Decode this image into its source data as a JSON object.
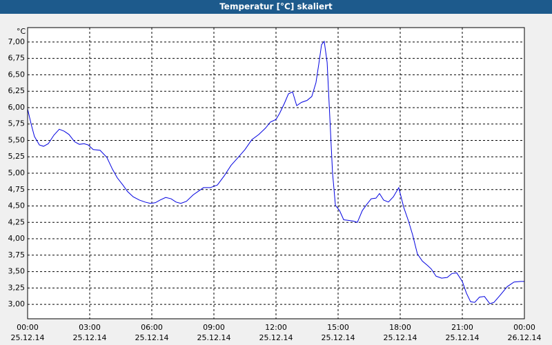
{
  "chart_data": {
    "type": "line",
    "title": "Temperatur [°C] skaliert",
    "ylabel": "°C",
    "color": "#0000e0",
    "grid": true,
    "xlim": [
      0,
      24
    ],
    "ylim": [
      2.78,
      7.22
    ],
    "xticks": [
      {
        "value": 0,
        "label": "00:00"
      },
      {
        "value": 3,
        "label": "03:00"
      },
      {
        "value": 6,
        "label": "06:00"
      },
      {
        "value": 9,
        "label": "09:00"
      },
      {
        "value": 12,
        "label": "12:00"
      },
      {
        "value": 15,
        "label": "15:00"
      },
      {
        "value": 18,
        "label": "18:00"
      },
      {
        "value": 21,
        "label": "21:00"
      },
      {
        "value": 24,
        "label": "00:00"
      }
    ],
    "xtick_dates": [
      "25.12.14",
      "25.12.14",
      "25.12.14",
      "25.12.14",
      "25.12.14",
      "25.12.14",
      "25.12.14",
      "25.12.14",
      "26.12.14"
    ],
    "yticks": [
      {
        "value": 3,
        "label": "3,00"
      },
      {
        "value": 3.25,
        "label": "3,25"
      },
      {
        "value": 3.5,
        "label": "3,50"
      },
      {
        "value": 3.75,
        "label": "3,75"
      },
      {
        "value": 4,
        "label": "4,00"
      },
      {
        "value": 4.25,
        "label": "4,25"
      },
      {
        "value": 4.5,
        "label": "4,50"
      },
      {
        "value": 4.75,
        "label": "4,75"
      },
      {
        "value": 5,
        "label": "5,00"
      },
      {
        "value": 5.25,
        "label": "5,25"
      },
      {
        "value": 5.5,
        "label": "5,50"
      },
      {
        "value": 5.75,
        "label": "5,75"
      },
      {
        "value": 6,
        "label": "6,00"
      },
      {
        "value": 6.25,
        "label": "6,25"
      },
      {
        "value": 6.5,
        "label": "6,50"
      },
      {
        "value": 6.75,
        "label": "6,75"
      },
      {
        "value": 7,
        "label": "7,00"
      }
    ],
    "x": [
      0,
      0.17,
      0.33,
      0.57,
      0.77,
      1.0,
      1.27,
      1.53,
      1.77,
      2.0,
      2.27,
      2.5,
      2.73,
      2.93,
      3.17,
      3.5,
      3.83,
      4.1,
      4.33,
      4.6,
      4.83,
      5.1,
      5.4,
      5.67,
      5.93,
      6.17,
      6.4,
      6.67,
      6.93,
      7.17,
      7.4,
      7.67,
      8.0,
      8.5,
      8.83,
      9.17,
      9.5,
      9.83,
      10.17,
      10.5,
      10.83,
      11.17,
      11.5,
      11.73,
      12.0,
      12.17,
      12.4,
      12.6,
      12.8,
      13.0,
      13.23,
      13.5,
      13.73,
      13.93,
      14.07,
      14.2,
      14.33,
      14.47,
      14.6,
      14.73,
      14.87,
      15.07,
      15.27,
      15.5,
      15.73,
      15.93,
      16.17,
      16.4,
      16.6,
      16.83,
      17.0,
      17.2,
      17.43,
      17.67,
      17.93,
      18.17,
      18.4,
      18.6,
      18.83,
      19.07,
      19.33,
      19.5,
      19.73,
      20.0,
      20.27,
      20.5,
      20.73,
      21.0,
      21.2,
      21.4,
      21.6,
      21.83,
      22.07,
      22.33,
      22.53,
      22.83,
      23.17,
      23.5,
      23.83,
      24.0
    ],
    "values": [
      5.98,
      5.75,
      5.56,
      5.43,
      5.41,
      5.45,
      5.58,
      5.67,
      5.64,
      5.59,
      5.48,
      5.44,
      5.45,
      5.43,
      5.36,
      5.35,
      5.24,
      5.06,
      4.93,
      4.82,
      4.72,
      4.64,
      4.59,
      4.56,
      4.54,
      4.55,
      4.59,
      4.63,
      4.61,
      4.56,
      4.54,
      4.57,
      4.67,
      4.78,
      4.78,
      4.82,
      4.96,
      5.12,
      5.24,
      5.36,
      5.51,
      5.59,
      5.69,
      5.78,
      5.82,
      5.91,
      6.06,
      6.21,
      6.24,
      6.03,
      6.08,
      6.11,
      6.17,
      6.38,
      6.67,
      6.96,
      7.01,
      6.69,
      5.85,
      5.01,
      4.51,
      4.43,
      4.29,
      4.28,
      4.27,
      4.25,
      4.43,
      4.53,
      4.61,
      4.62,
      4.69,
      4.59,
      4.56,
      4.64,
      4.78,
      4.48,
      4.27,
      4.06,
      3.77,
      3.66,
      3.59,
      3.54,
      3.43,
      3.4,
      3.41,
      3.47,
      3.48,
      3.35,
      3.17,
      3.04,
      3.03,
      3.11,
      3.12,
      3.01,
      3.03,
      3.14,
      3.27,
      3.34,
      3.35,
      3.35
    ]
  }
}
